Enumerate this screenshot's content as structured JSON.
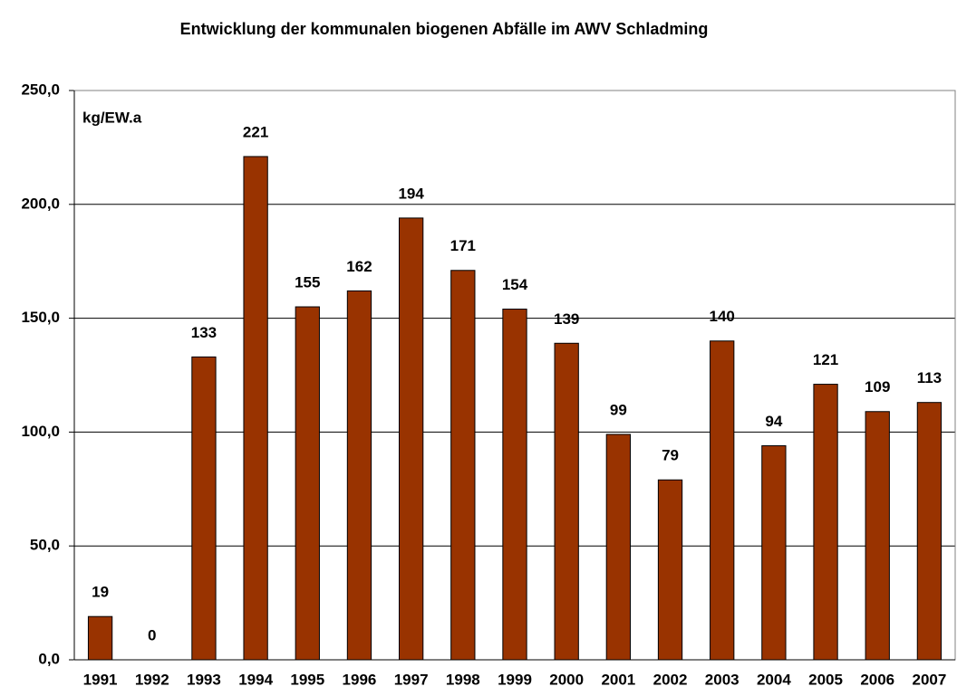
{
  "chart_data": {
    "type": "bar",
    "title": "Entwicklung der kommunalen biogenen Abfälle im AWV Schladming",
    "annotation": "kg/EW.a",
    "categories": [
      "1991",
      "1992",
      "1993",
      "1994",
      "1995",
      "1996",
      "1997",
      "1998",
      "1999",
      "2000",
      "2001",
      "2002",
      "2003",
      "2004",
      "2005",
      "2006",
      "2007"
    ],
    "values": [
      19,
      0,
      133,
      221,
      155,
      162,
      194,
      171,
      154,
      139,
      99,
      79,
      140,
      94,
      121,
      109,
      113
    ],
    "color": "#993300",
    "ylim": [
      0,
      250
    ],
    "yticks": [
      {
        "value": 0,
        "label": "0,0"
      },
      {
        "value": 50,
        "label": "50,0"
      },
      {
        "value": 100,
        "label": "100,0"
      },
      {
        "value": 150,
        "label": "150,0"
      },
      {
        "value": 200,
        "label": "200,0"
      },
      {
        "value": 250,
        "label": "250,0"
      }
    ],
    "grid": true
  }
}
